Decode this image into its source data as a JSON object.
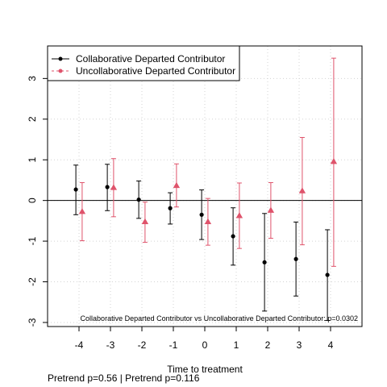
{
  "chart_data": {
    "type": "scatter",
    "xlabel": "Time to treatment",
    "ylabel": "",
    "xlim": [
      -5,
      5
    ],
    "ylim": [
      -3.1,
      3.8
    ],
    "x_ticks": [
      -4,
      -3,
      -2,
      -1,
      0,
      1,
      2,
      3,
      4
    ],
    "y_ticks": [
      -3,
      -2,
      -1,
      0,
      1,
      2,
      3
    ],
    "grid": true,
    "reference_line_y": 0,
    "legend_placement": "top-left",
    "annotation": "Collaborative Departed Contributor vs Uncollaborative Departed Contributor: p=0.0302",
    "footer_note": "Pretrend p=0.56 | Pretrend p=0.116",
    "series": [
      {
        "name": "Collaborative Departed Contributor",
        "color": "#000000",
        "marker": "circle",
        "x": [
          -4,
          -3,
          -2,
          -1,
          0,
          1,
          2,
          3,
          4
        ],
        "y": [
          0.27,
          0.33,
          0.02,
          -0.19,
          -0.35,
          -0.88,
          -1.52,
          -1.44,
          -1.83
        ],
        "ci_low": [
          -0.35,
          -0.25,
          -0.44,
          -0.58,
          -0.96,
          -1.59,
          -2.72,
          -2.35,
          -2.95
        ],
        "ci_high": [
          0.87,
          0.89,
          0.48,
          0.19,
          0.26,
          -0.18,
          -0.32,
          -0.53,
          -0.72
        ]
      },
      {
        "name": "Uncollaborative Departed Contributor",
        "color": "#DF536B",
        "marker": "triangle",
        "x": [
          -4,
          -3,
          -2,
          -1,
          0,
          1,
          2,
          3,
          4
        ],
        "y": [
          -0.27,
          0.32,
          -0.52,
          0.37,
          -0.52,
          -0.37,
          -0.24,
          0.24,
          0.96
        ],
        "ci_low": [
          -0.99,
          -0.4,
          -1.03,
          -0.16,
          -1.1,
          -1.18,
          -0.93,
          -1.09,
          -1.62
        ],
        "ci_high": [
          0.44,
          1.03,
          -0.04,
          0.9,
          0.05,
          0.43,
          0.44,
          1.55,
          3.5
        ]
      }
    ]
  }
}
